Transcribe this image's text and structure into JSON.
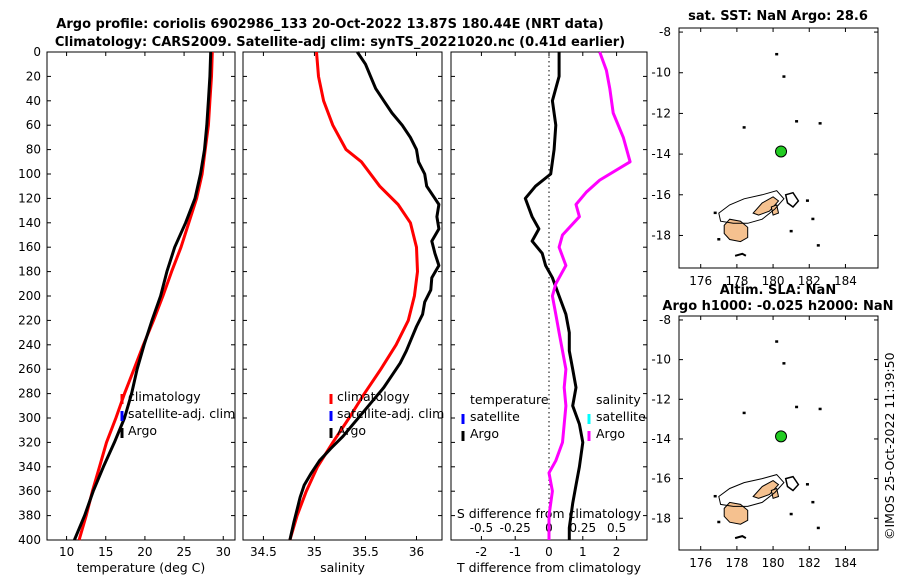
{
  "title_line1": "Argo profile: coriolis 6902986_133 20-Oct-2022 13.87S 180.44E (NRT data)",
  "title_line2": "Climatology: CARS2009. Satellite-adj clim: synTS_20221020.nc (0.41d earlier)",
  "watermark": "©IMOS 25-Oct-2022 11:39:50",
  "colors": {
    "climatology": "#ff0000",
    "satellite": "#0000ff",
    "argo": "#000000",
    "salinity_diff": "#ff00ff",
    "salinity_sat": "#00ffff",
    "land": "#f5c18f"
  },
  "chart_data": [
    {
      "id": "temperature",
      "type": "line",
      "xlabel": "temperature (deg C)",
      "ylabel": "",
      "xlim": [
        7.5,
        31.5
      ],
      "ylim": [
        400,
        0
      ],
      "xticks": [
        10,
        15,
        20,
        25,
        30
      ],
      "yticks": [
        0,
        20,
        40,
        60,
        80,
        100,
        120,
        140,
        160,
        180,
        200,
        220,
        240,
        260,
        280,
        300,
        320,
        340,
        360,
        380,
        400
      ],
      "legend": [
        "climatology",
        "satellite-adj. clim",
        "Argo"
      ],
      "series": [
        {
          "name": "climatology",
          "color": "#ff0000",
          "points": [
            [
              28.6,
              0
            ],
            [
              28.5,
              20
            ],
            [
              28.3,
              40
            ],
            [
              28.1,
              60
            ],
            [
              27.7,
              80
            ],
            [
              27.3,
              100
            ],
            [
              26.6,
              120
            ],
            [
              25.6,
              140
            ],
            [
              24.6,
              160
            ],
            [
              23.4,
              180
            ],
            [
              22.3,
              200
            ],
            [
              21.1,
              220
            ],
            [
              19.8,
              240
            ],
            [
              18.6,
              260
            ],
            [
              17.4,
              280
            ],
            [
              16.3,
              300
            ],
            [
              15.1,
              320
            ],
            [
              14.2,
              340
            ],
            [
              13.3,
              360
            ],
            [
              12.5,
              380
            ],
            [
              11.6,
              400
            ]
          ]
        },
        {
          "name": "Argo",
          "color": "#000000",
          "points": [
            [
              28.4,
              0
            ],
            [
              28.3,
              20
            ],
            [
              28.1,
              40
            ],
            [
              27.9,
              60
            ],
            [
              27.6,
              80
            ],
            [
              27.1,
              100
            ],
            [
              26.4,
              120
            ],
            [
              25.2,
              140
            ],
            [
              23.8,
              160
            ],
            [
              22.8,
              180
            ],
            [
              22.0,
              200
            ],
            [
              20.9,
              220
            ],
            [
              19.9,
              240
            ],
            [
              19.0,
              260
            ],
            [
              18.3,
              280
            ],
            [
              17.4,
              300
            ],
            [
              16.1,
              320
            ],
            [
              14.7,
              340
            ],
            [
              13.4,
              360
            ],
            [
              12.3,
              380
            ],
            [
              11.0,
              400
            ]
          ]
        }
      ]
    },
    {
      "id": "salinity",
      "type": "line",
      "xlabel": "salinity",
      "ylabel": "",
      "xlim": [
        34.3,
        36.25
      ],
      "ylim": [
        400,
        0
      ],
      "xticks": [
        34.5,
        35,
        35.5,
        36
      ],
      "legend": [
        "climatology",
        "satellite-adj. clim",
        "Argo"
      ],
      "series": [
        {
          "name": "climatology",
          "color": "#ff0000",
          "points": [
            [
              35.02,
              0
            ],
            [
              35.04,
              20
            ],
            [
              35.09,
              40
            ],
            [
              35.18,
              60
            ],
            [
              35.31,
              80
            ],
            [
              35.46,
              90
            ],
            [
              35.64,
              110
            ],
            [
              35.82,
              125
            ],
            [
              35.94,
              140
            ],
            [
              36.0,
              160
            ],
            [
              36.01,
              180
            ],
            [
              35.98,
              200
            ],
            [
              35.92,
              220
            ],
            [
              35.8,
              240
            ],
            [
              35.65,
              260
            ],
            [
              35.49,
              280
            ],
            [
              35.34,
              300
            ],
            [
              35.18,
              320
            ],
            [
              35.03,
              340
            ],
            [
              34.92,
              360
            ],
            [
              34.83,
              380
            ],
            [
              34.76,
              400
            ]
          ]
        },
        {
          "name": "Argo",
          "color": "#000000",
          "points": [
            [
              35.42,
              0
            ],
            [
              35.5,
              10
            ],
            [
              35.55,
              20
            ],
            [
              35.6,
              30
            ],
            [
              35.68,
              40
            ],
            [
              35.76,
              50
            ],
            [
              35.86,
              60
            ],
            [
              35.94,
              70
            ],
            [
              36.0,
              80
            ],
            [
              36.02,
              90
            ],
            [
              36.08,
              100
            ],
            [
              36.1,
              110
            ],
            [
              36.18,
              120
            ],
            [
              36.22,
              125
            ],
            [
              36.2,
              135
            ],
            [
              36.22,
              145
            ],
            [
              36.15,
              155
            ],
            [
              36.18,
              165
            ],
            [
              36.22,
              175
            ],
            [
              36.15,
              185
            ],
            [
              36.14,
              195
            ],
            [
              36.08,
              205
            ],
            [
              36.06,
              215
            ],
            [
              36.0,
              225
            ],
            [
              35.95,
              235
            ],
            [
              35.9,
              245
            ],
            [
              35.84,
              255
            ],
            [
              35.76,
              265
            ],
            [
              35.68,
              275
            ],
            [
              35.58,
              285
            ],
            [
              35.48,
              295
            ],
            [
              35.38,
              305
            ],
            [
              35.28,
              315
            ],
            [
              35.16,
              325
            ],
            [
              35.05,
              335
            ],
            [
              34.97,
              345
            ],
            [
              34.9,
              355
            ],
            [
              34.86,
              365
            ],
            [
              34.83,
              375
            ],
            [
              34.8,
              385
            ],
            [
              34.76,
              400
            ]
          ]
        }
      ]
    },
    {
      "id": "difference",
      "type": "line",
      "xlabel": "T difference from climatology",
      "xlabel_top": "S difference from climatology",
      "xlim": [
        -2.9,
        2.9
      ],
      "ylim": [
        400,
        0
      ],
      "xticks": [
        -2,
        -1,
        0,
        1,
        2
      ],
      "xticks_top_labels": [
        "-0.5",
        "-0.25",
        "0",
        "0.25",
        "0.5"
      ],
      "xticks_top_positions": [
        -2,
        -1,
        0,
        1,
        2
      ],
      "legend_t": {
        "heading": "temperature",
        "items": [
          "satellite",
          "Argo"
        ]
      },
      "legend_s": {
        "heading": "salinity",
        "items": [
          "satellite",
          "Argo"
        ]
      },
      "series": [
        {
          "name": "T difference",
          "color": "#000000",
          "points": [
            [
              0.3,
              0
            ],
            [
              0.3,
              20
            ],
            [
              0.1,
              40
            ],
            [
              0.2,
              60
            ],
            [
              0.15,
              80
            ],
            [
              0.05,
              100
            ],
            [
              -0.4,
              110
            ],
            [
              -0.7,
              120
            ],
            [
              -0.5,
              135
            ],
            [
              -0.3,
              145
            ],
            [
              -0.5,
              155
            ],
            [
              -0.2,
              165
            ],
            [
              -0.1,
              175
            ],
            [
              0.1,
              185
            ],
            [
              0.3,
              200
            ],
            [
              0.5,
              215
            ],
            [
              0.6,
              230
            ],
            [
              0.6,
              245
            ],
            [
              0.7,
              260
            ],
            [
              0.8,
              275
            ],
            [
              0.7,
              290
            ],
            [
              0.9,
              305
            ],
            [
              1.0,
              320
            ],
            [
              0.9,
              340
            ],
            [
              0.8,
              355
            ],
            [
              0.7,
              370
            ],
            [
              0.6,
              390
            ],
            [
              0.6,
              400
            ]
          ]
        },
        {
          "name": "S difference",
          "color": "#ff00ff",
          "points": [
            [
              1.5,
              0
            ],
            [
              1.7,
              15
            ],
            [
              1.8,
              30
            ],
            [
              1.9,
              50
            ],
            [
              2.2,
              70
            ],
            [
              2.4,
              90
            ],
            [
              1.5,
              105
            ],
            [
              1.1,
              115
            ],
            [
              0.8,
              125
            ],
            [
              0.9,
              135
            ],
            [
              0.4,
              150
            ],
            [
              0.3,
              160
            ],
            [
              0.5,
              175
            ],
            [
              0.2,
              190
            ],
            [
              0.1,
              200
            ],
            [
              0.2,
              215
            ],
            [
              0.3,
              230
            ],
            [
              0.4,
              245
            ],
            [
              0.5,
              260
            ],
            [
              0.45,
              275
            ],
            [
              0.5,
              290
            ],
            [
              0.45,
              305
            ],
            [
              0.4,
              320
            ],
            [
              0.2,
              335
            ],
            [
              0.0,
              345
            ],
            [
              0.1,
              360
            ],
            [
              0.0,
              380
            ],
            [
              0.0,
              400
            ]
          ]
        }
      ]
    },
    {
      "id": "map_sst",
      "type": "scatter",
      "title": "sat. SST: NaN Argo: 28.6",
      "xlim": [
        174.8,
        185.8
      ],
      "ylim": [
        -19.6,
        -7.8
      ],
      "xticks": [
        176,
        178,
        180,
        182,
        184
      ],
      "yticks": [
        -8,
        -10,
        -12,
        -14,
        -16,
        -18
      ],
      "point": {
        "lon": 180.44,
        "lat": -13.87,
        "color": "#22cc22"
      }
    },
    {
      "id": "map_sla",
      "type": "scatter",
      "title": "Altim. SLA: NaN",
      "subtitle": "Argo h1000: -0.025 h2000: NaN",
      "xlim": [
        174.8,
        185.8
      ],
      "ylim": [
        -19.6,
        -7.8
      ],
      "xticks": [
        176,
        178,
        180,
        182,
        184
      ],
      "yticks": [
        -8,
        -10,
        -12,
        -14,
        -16,
        -18
      ],
      "point": {
        "lon": 180.44,
        "lat": -13.87,
        "color": "#22cc22"
      }
    }
  ]
}
